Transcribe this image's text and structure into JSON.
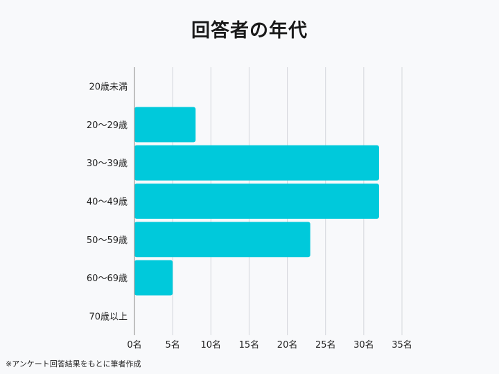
{
  "colors": {
    "bar": "#00c9db",
    "grid": "#d3d6db",
    "axis": "#9a9a9a",
    "background": "#f8f9fb"
  },
  "chart_data": {
    "type": "bar",
    "orientation": "horizontal",
    "title": "回答者の年代",
    "categories": [
      "20歳未満",
      "20～29歳",
      "30～39歳",
      "40～49歳",
      "50～59歳",
      "60～69歳",
      "70歳以上"
    ],
    "values": [
      0,
      8,
      32,
      32,
      23,
      5,
      0
    ],
    "xlim": [
      0,
      35
    ],
    "x_ticks": [
      "0名",
      "5名",
      "10名",
      "15名",
      "20名",
      "25名",
      "30名",
      "35名"
    ],
    "grid": true,
    "legend": "none"
  },
  "footnote": "※アンケート回答結果をもとに筆者作成"
}
